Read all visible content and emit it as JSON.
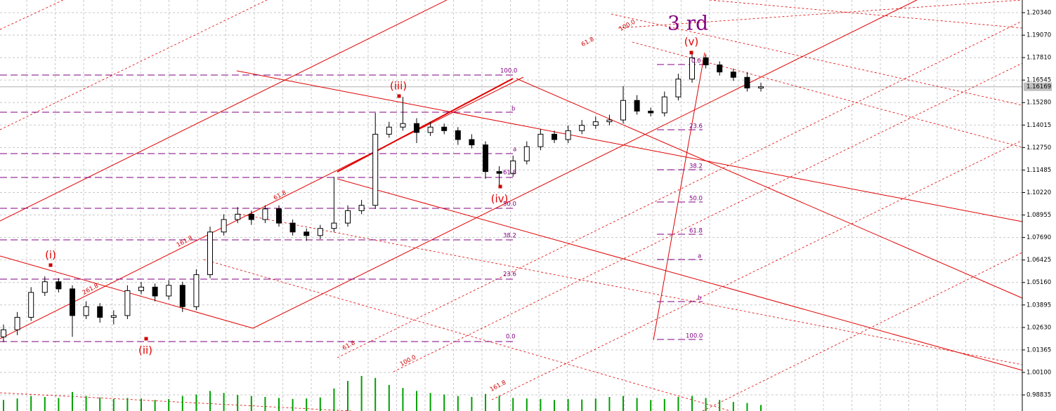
{
  "chart_data": {
    "type": "candlestick",
    "title": "3 rd",
    "open": [
      1.021,
      1.025,
      1.032,
      1.046,
      1.052,
      1.048,
      1.033,
      1.038,
      1.032,
      1.033,
      1.047,
      1.049,
      1.044,
      1.05,
      1.038,
      1.056,
      1.08,
      1.087,
      1.09,
      1.087,
      1.093,
      1.085,
      1.08,
      1.078,
      1.082,
      1.085,
      1.092,
      1.095,
      1.135,
      1.139,
      1.141,
      1.136,
      1.139,
      1.137,
      1.132,
      1.129,
      1.114,
      1.113,
      1.12,
      1.128,
      1.135,
      1.132,
      1.137,
      1.14,
      1.142,
      1.143,
      1.154,
      1.148,
      1.147,
      1.156,
      1.166,
      1.178,
      1.174,
      1.17,
      1.167,
      1.161
    ],
    "high": [
      1.028,
      1.035,
      1.049,
      1.055,
      1.054,
      1.05,
      1.041,
      1.04,
      1.036,
      1.05,
      1.052,
      1.051,
      1.053,
      1.052,
      1.059,
      1.083,
      1.09,
      1.094,
      1.092,
      1.095,
      1.095,
      1.087,
      1.082,
      1.084,
      1.111,
      1.095,
      1.098,
      1.147,
      1.142,
      1.156,
      1.144,
      1.142,
      1.141,
      1.139,
      1.135,
      1.131,
      1.117,
      1.123,
      1.131,
      1.138,
      1.137,
      1.14,
      1.143,
      1.145,
      1.146,
      1.162,
      1.157,
      1.15,
      1.159,
      1.169,
      1.181,
      1.18,
      1.176,
      1.172,
      1.17,
      1.164
    ],
    "low": [
      1.018,
      1.022,
      1.03,
      1.044,
      1.046,
      1.021,
      1.031,
      1.029,
      1.028,
      1.031,
      1.045,
      1.041,
      1.042,
      1.035,
      1.036,
      1.054,
      1.078,
      1.085,
      1.084,
      1.085,
      1.083,
      1.078,
      1.075,
      1.076,
      1.08,
      1.083,
      1.09,
      1.093,
      1.133,
      1.137,
      1.13,
      1.134,
      1.135,
      1.129,
      1.127,
      1.11,
      1.105,
      1.111,
      1.118,
      1.126,
      1.13,
      1.13,
      1.135,
      1.138,
      1.14,
      1.141,
      1.146,
      1.145,
      1.145,
      1.154,
      1.164,
      1.172,
      1.168,
      1.165,
      1.159,
      1.159
    ],
    "close": [
      1.025,
      1.032,
      1.046,
      1.052,
      1.048,
      1.033,
      1.038,
      1.032,
      1.033,
      1.047,
      1.049,
      1.044,
      1.05,
      1.038,
      1.056,
      1.08,
      1.087,
      1.09,
      1.087,
      1.093,
      1.085,
      1.08,
      1.078,
      1.082,
      1.085,
      1.092,
      1.095,
      1.135,
      1.139,
      1.141,
      1.136,
      1.139,
      1.137,
      1.132,
      1.129,
      1.114,
      1.113,
      1.12,
      1.128,
      1.135,
      1.132,
      1.137,
      1.14,
      1.142,
      1.143,
      1.154,
      1.148,
      1.147,
      1.156,
      1.166,
      1.178,
      1.174,
      1.17,
      1.167,
      1.161,
      1.1617
    ],
    "volume": [
      22000,
      25000,
      30000,
      28000,
      26000,
      38000,
      30000,
      27000,
      24000,
      26000,
      25000,
      22000,
      24000,
      30000,
      33000,
      40000,
      36000,
      32000,
      30000,
      28000,
      26000,
      24000,
      25000,
      27000,
      45000,
      60000,
      70000,
      66000,
      52000,
      46000,
      40000,
      36000,
      33000,
      30000,
      28000,
      34000,
      30000,
      26000,
      25000,
      24000,
      22000,
      24000,
      23000,
      25000,
      28000,
      30000,
      26000,
      22000,
      24000,
      28000,
      30000,
      26000,
      22000,
      18000,
      16000,
      12000
    ],
    "up_color": "#ffffff",
    "down_color": "#000000",
    "volume_color": "#00a000",
    "ylim": [
      0.9793,
      1.2105
    ],
    "yticks": [
      {
        "value": 1.2034,
        "label": "1.20340"
      },
      {
        "value": 1.1907,
        "label": "1.19070"
      },
      {
        "value": 1.1781,
        "label": "1.17810"
      },
      {
        "value": 1.16545,
        "label": "1.16545"
      },
      {
        "value": 1.1528,
        "label": "1.15280"
      },
      {
        "value": 1.14015,
        "label": "1.14015"
      },
      {
        "value": 1.1275,
        "label": "1.12750"
      },
      {
        "value": 1.11485,
        "label": "1.11485"
      },
      {
        "value": 1.1022,
        "label": "1.10220"
      },
      {
        "value": 1.08955,
        "label": "1.08955"
      },
      {
        "value": 1.0769,
        "label": "1.07690"
      },
      {
        "value": 1.06425,
        "label": "1.06425"
      },
      {
        "value": 1.0516,
        "label": "1.05160"
      },
      {
        "value": 1.03895,
        "label": "1.03895"
      },
      {
        "value": 1.0263,
        "label": "1.02630"
      },
      {
        "value": 1.01365,
        "label": "1.01365"
      },
      {
        "value": 1.001,
        "label": "1.00100"
      },
      {
        "value": 0.98835,
        "label": "0.98835"
      }
    ],
    "last_price": {
      "value": 1.16169,
      "label": "1.16169"
    },
    "grid": true,
    "wave_labels": [
      "(i)",
      "(ii)",
      "(iii)",
      "(iv)",
      "(v)"
    ],
    "fib_left": [
      "100.0",
      "b",
      "a",
      "61.8",
      "50.0",
      "38.2",
      "23.6",
      "0.0"
    ],
    "fib_right": [
      "0.0",
      "23.6",
      "38.2",
      "50.0",
      "61.8",
      "a",
      "b",
      "100.0"
    ],
    "pitchfork_labels": [
      "100.0",
      "61.8",
      "61.8",
      "161.8",
      "261.8",
      "61.8",
      "100.0",
      "161.8"
    ]
  }
}
